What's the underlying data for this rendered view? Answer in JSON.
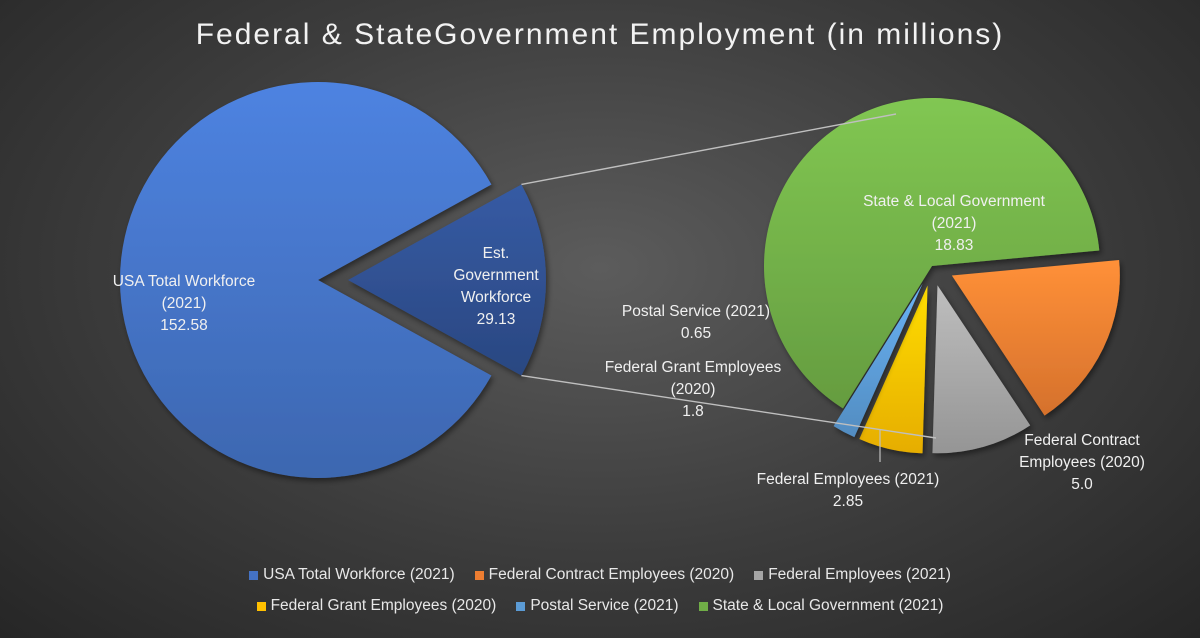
{
  "title": "Federal & StateGovernment Employment (in millions)",
  "chart_data": {
    "type": "pie",
    "subtype": "pie-of-pie",
    "title": "Federal & StateGovernment Employment (in millions)",
    "main_pie": {
      "slices": [
        {
          "label_lines": [
            "USA Total Workforce",
            "(2021)"
          ],
          "value": 152.58,
          "color": "#4472c4"
        },
        {
          "label_lines": [
            "Est.",
            "Government",
            "Workforce"
          ],
          "value": 29.13,
          "color": "#2f4f8f"
        }
      ]
    },
    "secondary_pie": {
      "slices": [
        {
          "label_lines": [
            "State & Local Government",
            "(2021)"
          ],
          "value": 18.83,
          "color": "#70ad47"
        },
        {
          "label_lines": [
            "Federal Contract",
            "Employees (2020)"
          ],
          "value": 5.0,
          "color": "#ed7d31"
        },
        {
          "label_lines": [
            "Federal Employees (2021)"
          ],
          "value": 2.85,
          "color": "#a5a5a5"
        },
        {
          "label_lines": [
            "Federal Grant Employees",
            "(2020)"
          ],
          "value": 1.8,
          "color": "#ffc000"
        },
        {
          "label_lines": [
            "Postal Service (2021)"
          ],
          "value": 0.65,
          "color": "#5b9bd5"
        }
      ]
    },
    "value_labels": {
      "usa": "152.58",
      "gov": "29.13",
      "state": "18.83",
      "contract": "5.0",
      "federal": "2.85",
      "grant": "1.8",
      "postal": "0.65"
    },
    "legend_placement": "bottom",
    "legend": [
      [
        {
          "label": "USA Total Workforce (2021)",
          "color": "#4472c4"
        },
        {
          "label": "Federal Contract Employees (2020)",
          "color": "#ed7d31"
        },
        {
          "label": "Federal Employees (2021)",
          "color": "#a5a5a5"
        }
      ],
      [
        {
          "label": "Federal Grant Employees (2020)",
          "color": "#ffc000"
        },
        {
          "label": "Postal Service (2021)",
          "color": "#5b9bd5"
        },
        {
          "label": "State & Local Government (2021)",
          "color": "#70ad47"
        }
      ]
    ]
  }
}
